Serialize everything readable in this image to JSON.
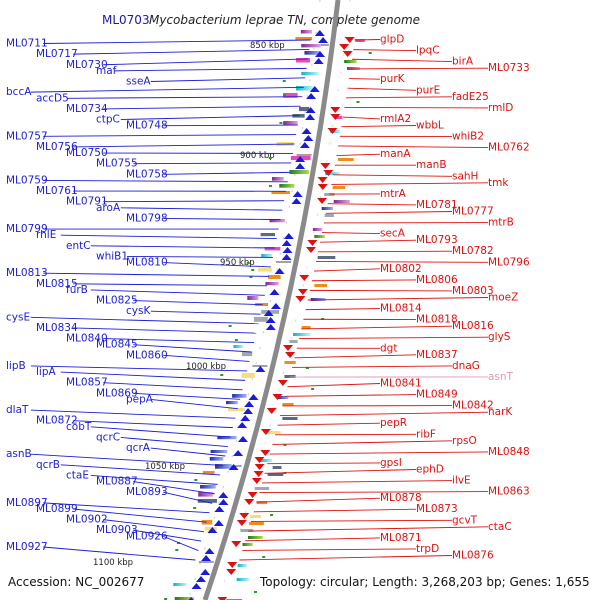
{
  "header": {
    "code": "ML0703",
    "organism": "Mycobacterium leprae TN, complete genome"
  },
  "footer": {
    "accession": "Accession: NC_002677",
    "stats": "Topology: circular; Length: 3,268,203 bp; Genes: 1,655"
  },
  "colors": {
    "minus_strand": "#1c1cd6",
    "plus_strand": "#e01010",
    "faded": "#e59ab4",
    "backbone": "#8a8a8a"
  },
  "ticks": [
    "850 kbp",
    "900 kbp",
    "950 kbp",
    "1000 kbp",
    "1050 kbp",
    "1100 kbp"
  ],
  "left_genes": [
    "ML0711",
    "ML0717",
    "ML0730",
    "maf",
    "sseA",
    "bccA",
    "accD5",
    "ML0734",
    "ctpC",
    "ML0748",
    "ML0757",
    "ML0756",
    "ML0750",
    "ML0755",
    "ML0758",
    "ML0759",
    "ML0761",
    "ML0791",
    "aroA",
    "ML0798",
    "ML0799",
    "rhlE",
    "entC",
    "whiB1",
    "ML0810",
    "ML0813",
    "ML0815",
    "furB",
    "ML0825",
    "cysK",
    "cysE",
    "ML0834",
    "ML0840",
    "ML0845",
    "ML0860",
    "lipB",
    "lipA",
    "ML0857",
    "ML0869",
    "pepA",
    "dlaT",
    "ML0872",
    "cobT",
    "qcrC",
    "qcrA",
    "asnB",
    "qcrB",
    "ctaE",
    "ML0887",
    "ML0893",
    "ML0897",
    "ML0899",
    "ML0902",
    "ML0903",
    "ML0926",
    "ML0927"
  ],
  "right_genes": [
    "glpD",
    "lpqC",
    "birA",
    "ML0733",
    "purK",
    "purE",
    "fadE25",
    "rmlD",
    "rmlA2",
    "wbbL",
    "whiB2",
    "ML0762",
    "manA",
    "manB",
    "sahH",
    "tmk",
    "mtrA",
    "ML0781",
    "ML0777",
    "mtrB",
    "secA",
    "ML0793",
    "ML0782",
    "ML0796",
    "ML0802",
    "ML0806",
    "ML0803",
    "moeZ",
    "ML0814",
    "ML0818",
    "ML0816",
    "glyS",
    "dgt",
    "ML0837",
    "dnaG",
    "asnT",
    "ML0841",
    "ML0849",
    "ML0842",
    "narK",
    "pepR",
    "ribF",
    "rpsO",
    "ML0848",
    "gpsI",
    "ephD",
    "ilvE",
    "ML0863",
    "ML0878",
    "ML0873",
    "gcvT",
    "ctaC",
    "ML0871",
    "trpD",
    "ML0876"
  ]
}
